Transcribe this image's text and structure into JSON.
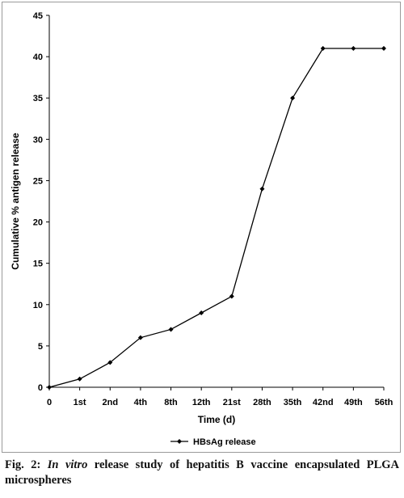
{
  "chart_data": {
    "type": "line",
    "categories": [
      "0",
      "1st",
      "2nd",
      "4th",
      "8th",
      "12th",
      "21st",
      "28th",
      "35th",
      "42nd",
      "49th",
      "56th"
    ],
    "series": [
      {
        "name": "HBsAg release",
        "values": [
          0,
          1,
          3,
          6,
          7,
          9,
          11,
          24,
          35,
          41,
          41,
          41
        ]
      }
    ],
    "xlabel": "Time (d)",
    "ylabel": "Cumulative % antigen release",
    "ylim": [
      0,
      45
    ],
    "yticks": [
      "0",
      "5",
      "10",
      "15",
      "20",
      "25",
      "30",
      "35",
      "40",
      "45"
    ],
    "grid": false,
    "legend_position": "bottom",
    "series_color": "#000000",
    "marker": "diamond"
  },
  "caption": {
    "label": "Fig. 2:",
    "italic": "In vitro",
    "rest": " release study of hepatitis B vaccine encapsulated PLGA microspheres"
  }
}
